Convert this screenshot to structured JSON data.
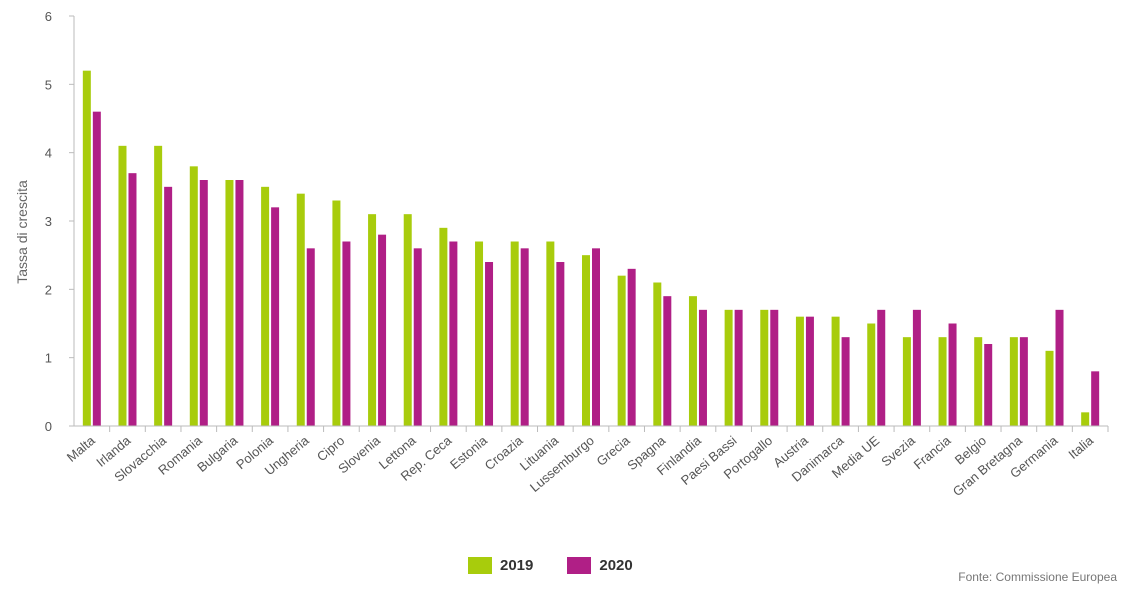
{
  "chart_data": {
    "type": "bar",
    "ylabel": "Tassa di crescita",
    "ylim": [
      0,
      6
    ],
    "yticks": [
      0,
      1,
      2,
      3,
      4,
      5,
      6
    ],
    "grid": false,
    "legend_position": "bottom-center",
    "categories": [
      "Malta",
      "Irlanda",
      "Slovacchia",
      "Romania",
      "Bulgaria",
      "Polonia",
      "Ungheria",
      "Cipro",
      "Slovenia",
      "Lettona",
      "Rep. Ceca",
      "Estonia",
      "Croazia",
      "Lituania",
      "Lussemburgo",
      "Grecia",
      "Spagna",
      "Finlandia",
      "Paesi Bassi",
      "Portogallo",
      "Austria",
      "Danimarca",
      "Media UE",
      "Svezia",
      "Francia",
      "Belgio",
      "Gran Bretagna",
      "Germania",
      "Italia"
    ],
    "series": [
      {
        "name": "2019",
        "color": "#a8cc0c",
        "values": [
          5.2,
          4.1,
          4.1,
          3.8,
          3.6,
          3.5,
          3.4,
          3.3,
          3.1,
          3.1,
          2.9,
          2.7,
          2.7,
          2.7,
          2.5,
          2.2,
          2.1,
          1.9,
          1.7,
          1.7,
          1.6,
          1.6,
          1.5,
          1.3,
          1.3,
          1.3,
          1.3,
          1.1,
          0.2
        ]
      },
      {
        "name": "2020",
        "color": "#b01f86",
        "values": [
          4.6,
          3.7,
          3.5,
          3.6,
          3.6,
          3.2,
          2.6,
          2.7,
          2.8,
          2.6,
          2.7,
          2.4,
          2.6,
          2.4,
          2.6,
          2.3,
          1.9,
          1.7,
          1.7,
          1.7,
          1.6,
          1.3,
          1.7,
          1.7,
          1.5,
          1.2,
          1.3,
          1.7,
          0.8
        ]
      }
    ]
  },
  "legend": {
    "s1": "2019",
    "s2": "2020",
    "c1": "#a8cc0c",
    "c2": "#b01f86"
  },
  "source": "Fonte: Commissione Europea"
}
